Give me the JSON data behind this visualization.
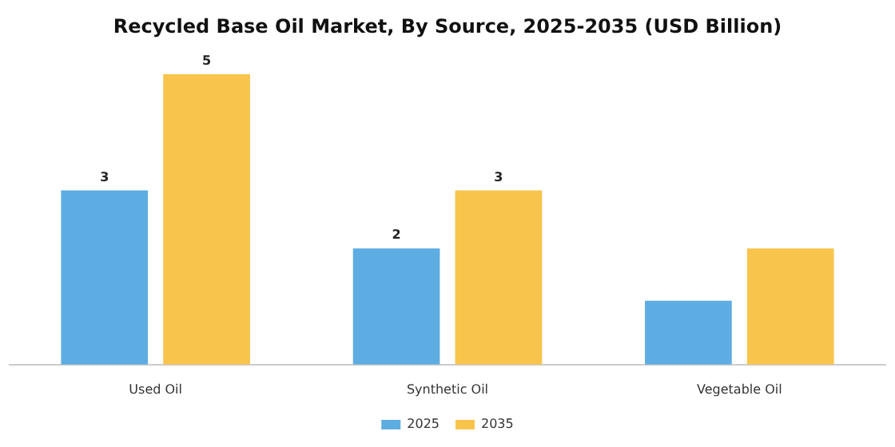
{
  "chart_data": {
    "type": "bar",
    "title": "Recycled Base Oil Market, By Source, 2025-2035 (USD Billion)",
    "categories": [
      "Used Oil",
      "Synthetic Oil",
      "Vegetable Oil"
    ],
    "legend": "bottom",
    "series": [
      {
        "name": "2025",
        "color": "#5dade2",
        "values": [
          3,
          2,
          1.1
        ],
        "value_labels": [
          "3",
          "2",
          null
        ]
      },
      {
        "name": "2035",
        "color": "#f8c44c",
        "values": [
          5,
          3,
          2
        ],
        "value_labels": [
          "5",
          "3",
          null
        ]
      }
    ]
  }
}
